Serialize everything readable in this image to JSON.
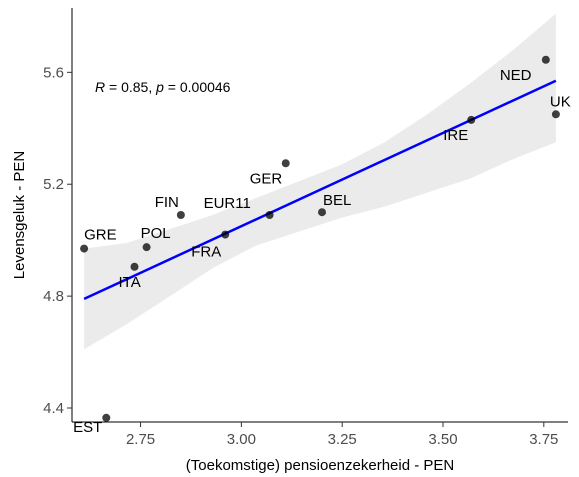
{
  "chart_data": {
    "type": "scatter",
    "xlabel": "(Toekomstige) pensioenzekerheid - PEN",
    "ylabel": "Levensgeluk - PEN",
    "xlim": [
      2.58,
      3.81
    ],
    "ylim": [
      4.35,
      5.83
    ],
    "x_ticks": [
      2.75,
      3.0,
      3.25,
      3.5,
      3.75
    ],
    "x_tick_labels": [
      "2.75",
      "3.00",
      "3.25",
      "3.50",
      "3.75"
    ],
    "y_ticks": [
      4.4,
      4.8,
      5.2,
      5.6
    ],
    "y_tick_labels": [
      "4.4",
      "4.8",
      "5.2",
      "5.6"
    ],
    "grid": false,
    "annotation": {
      "r_symbol": "R",
      "r_text": " = 0.85, ",
      "p_symbol": "p",
      "p_text": " = 0.00046"
    },
    "points": [
      {
        "label": "GRE",
        "x": 2.61,
        "y": 4.97
      },
      {
        "label": "EST",
        "x": 2.665,
        "y": 4.365
      },
      {
        "label": "ITA",
        "x": 2.735,
        "y": 4.905
      },
      {
        "label": "POL",
        "x": 2.765,
        "y": 4.975
      },
      {
        "label": "FIN",
        "x": 2.85,
        "y": 5.09
      },
      {
        "label": "FRA",
        "x": 2.96,
        "y": 5.02
      },
      {
        "label": "EUR11",
        "x": 3.07,
        "y": 5.09
      },
      {
        "label": "GER",
        "x": 3.11,
        "y": 5.275
      },
      {
        "label": "BEL",
        "x": 3.2,
        "y": 5.1
      },
      {
        "label": "IRE",
        "x": 3.57,
        "y": 5.43
      },
      {
        "label": "NED",
        "x": 3.755,
        "y": 5.645
      },
      {
        "label": "UK",
        "x": 3.78,
        "y": 5.45
      }
    ],
    "regression": {
      "x": [
        2.61,
        3.78
      ],
      "y": [
        4.79,
        5.57
      ],
      "band_upper": [
        4.97,
        4.99,
        5.04,
        5.09,
        5.15,
        5.21,
        5.27,
        5.35,
        5.45,
        5.56,
        5.68,
        5.81
      ],
      "band_lower": [
        4.61,
        4.7,
        4.8,
        4.9,
        4.98,
        5.03,
        5.08,
        5.12,
        5.17,
        5.22,
        5.29,
        5.35
      ],
      "band_x": [
        2.61,
        2.716,
        2.823,
        2.929,
        3.035,
        3.142,
        3.248,
        3.355,
        3.461,
        3.567,
        3.674,
        3.78
      ]
    },
    "colors": {
      "line": "#0000ff",
      "band": "#ebebeb",
      "point": "#000000"
    }
  }
}
